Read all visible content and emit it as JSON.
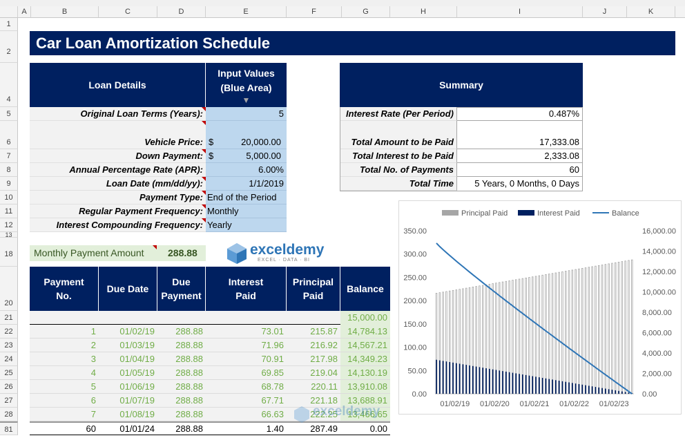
{
  "columns": [
    "A",
    "B",
    "C",
    "D",
    "E",
    "F",
    "G",
    "H",
    "I",
    "J",
    "K"
  ],
  "rows": [
    "1",
    "2",
    "4",
    "5",
    "6",
    "7",
    "8",
    "9",
    "10",
    "11",
    "12",
    "13",
    "18",
    "20",
    "21",
    "22",
    "23",
    "24",
    "25",
    "26",
    "27",
    "28",
    "81"
  ],
  "title": "Car Loan Amortization Schedule",
  "loan": {
    "header_label": "Loan Details",
    "header_values": "Input Values\n(Blue Area)",
    "header_values_line1": "Input Values",
    "header_values_line2": "(Blue Area)",
    "arrow": "▼",
    "items": [
      {
        "label": "Original Loan Terms (Years):",
        "prefix": "",
        "value": "5"
      },
      {
        "label": "Vehicle Price:",
        "prefix": "$",
        "value": "20,000.00"
      },
      {
        "label": "Down Payment:",
        "prefix": "$",
        "value": "5,000.00"
      },
      {
        "label": "Annual Percentage Rate (APR):",
        "prefix": "",
        "value": "6.00%"
      },
      {
        "label": "Loan Date (mm/dd/yy):",
        "prefix": "",
        "value": "1/1/2019"
      },
      {
        "label": "Payment Type:",
        "prefix": "",
        "value": "End of the Period"
      },
      {
        "label": "Regular Payment Frequency:",
        "prefix": "",
        "value": "Monthly"
      },
      {
        "label": "Interest Compounding Frequency:",
        "prefix": "",
        "value": "Yearly"
      }
    ]
  },
  "summary": {
    "header": "Summary",
    "items": [
      {
        "label": "Interest Rate (Per Period)",
        "value": "0.487%"
      },
      {
        "label": "Total Amount to be Paid",
        "value": "17,333.08"
      },
      {
        "label": "Total Interest to be Paid",
        "value": "2,333.08"
      },
      {
        "label": "Total No. of Payments",
        "value": "60"
      },
      {
        "label": "Total Time",
        "value": "5 Years, 0 Months, 0 Days"
      }
    ]
  },
  "monthly": {
    "label": "Monthly Payment Amount",
    "value": "288.88"
  },
  "logo": {
    "name": "exceldemy",
    "tagline": "EXCEL · DATA · BI"
  },
  "schedule": {
    "headers": [
      [
        "Payment",
        "No."
      ],
      [
        "Due Date",
        ""
      ],
      [
        "Due",
        "Payment"
      ],
      [
        "Interest",
        "Paid"
      ],
      [
        "Principal",
        "Paid"
      ],
      [
        "Balance",
        ""
      ]
    ],
    "initial_balance": "15,000.00",
    "rows": [
      [
        "1",
        "01/02/19",
        "288.88",
        "73.01",
        "215.87",
        "14,784.13"
      ],
      [
        "2",
        "01/03/19",
        "288.88",
        "71.96",
        "216.92",
        "14,567.21"
      ],
      [
        "3",
        "01/04/19",
        "288.88",
        "70.91",
        "217.98",
        "14,349.23"
      ],
      [
        "4",
        "01/05/19",
        "288.88",
        "69.85",
        "219.04",
        "14,130.19"
      ],
      [
        "5",
        "01/06/19",
        "288.88",
        "68.78",
        "220.11",
        "13,910.08"
      ],
      [
        "6",
        "01/07/19",
        "288.88",
        "67.71",
        "221.18",
        "13,688.91"
      ],
      [
        "7",
        "01/08/19",
        "288.88",
        "66.63",
        "222.25",
        "13,466.65"
      ]
    ],
    "last_row": [
      "60",
      "01/01/24",
      "288.88",
      "1.40",
      "287.49",
      "0.00"
    ]
  },
  "chart_data": {
    "type": "bar",
    "legend": [
      "Principal Paid",
      "Interest Paid",
      "Balance"
    ],
    "legend_position": "top",
    "x_tick_labels": [
      "01/02/19",
      "01/02/20",
      "01/02/21",
      "01/02/22",
      "01/02/23"
    ],
    "y_left_ticks": [
      "0.00",
      "50.00",
      "100.00",
      "150.00",
      "200.00",
      "250.00",
      "300.00",
      "350.00"
    ],
    "y_right_ticks": [
      "0.00",
      "2,000.00",
      "4,000.00",
      "6,000.00",
      "8,000.00",
      "10,000.00",
      "12,000.00",
      "14,000.00",
      "16,000.00"
    ],
    "ylim_left": [
      0,
      350
    ],
    "ylim_right": [
      0,
      16000
    ],
    "periods": 60,
    "principal_first": 215.87,
    "principal_last": 287.49,
    "interest_first": 73.01,
    "interest_last": 1.4,
    "balance_first": 14784.13,
    "balance_last": 0.0,
    "colors": {
      "principal": "#a6a6a6",
      "interest": "#002060",
      "balance": "#2e75b6"
    }
  }
}
